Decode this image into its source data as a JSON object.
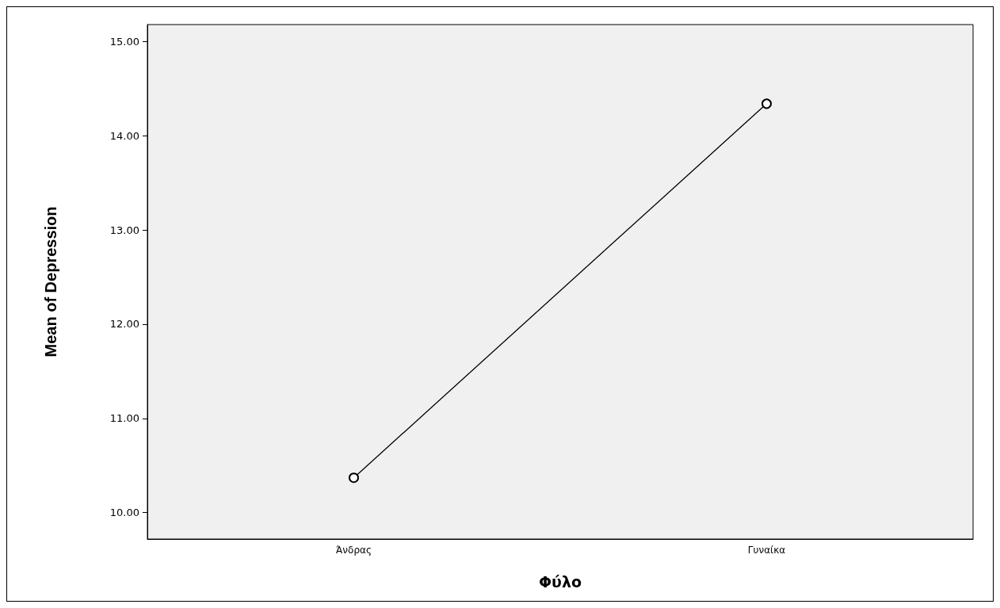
{
  "chart_data": {
    "type": "line",
    "xlabel": "Φύλο",
    "ylabel": "Mean of Depression",
    "categories": [
      "Άνδρας",
      "Γυναίκα"
    ],
    "series": [
      {
        "color": "#000000",
        "values": [
          10.37,
          14.34
        ]
      }
    ],
    "ylim": [
      9.72,
      15.18
    ],
    "yticks": [
      {
        "value": 10,
        "label": "10.00"
      },
      {
        "value": 11,
        "label": "11.00"
      },
      {
        "value": 12,
        "label": "12.00"
      },
      {
        "value": 13,
        "label": "13.00"
      },
      {
        "value": 14,
        "label": "14.00"
      },
      {
        "value": 15,
        "label": "15.00"
      }
    ],
    "marker": "circle",
    "line_style": "solid",
    "grid": false
  }
}
